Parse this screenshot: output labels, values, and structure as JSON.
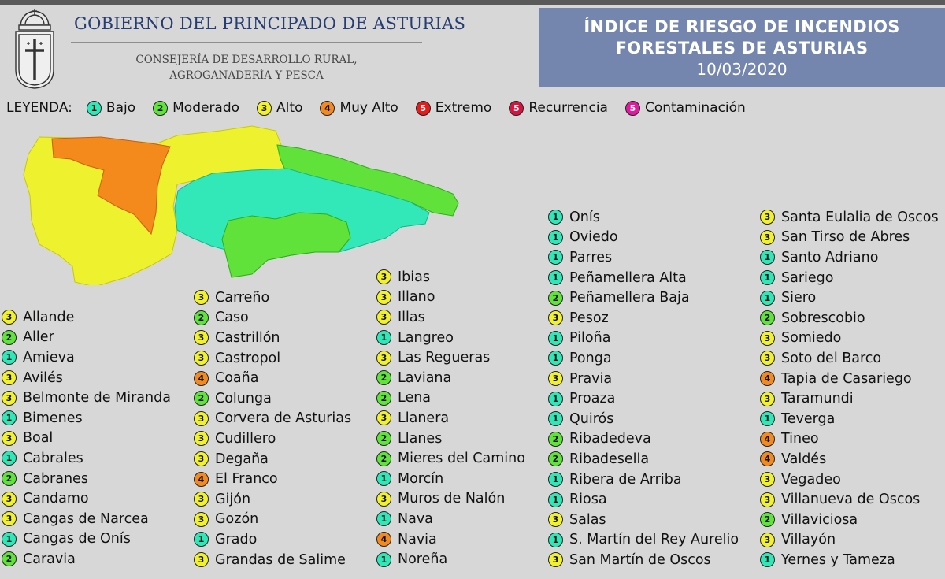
{
  "header": {
    "gov_title": "GOBIERNO DEL PRINCIPADO DE ASTURIAS",
    "consejeria_line1": "CONSEJERÍA DE DESARROLLO RURAL,",
    "consejeria_line2": "AGROGANADERÍA Y PESCA",
    "title_line1": "ÍNDICE DE RIESGO DE INCENDIOS",
    "title_line2": "FORESTALES DE ASTURIAS",
    "date": "10/03/2020"
  },
  "legend": {
    "lead": "LEYENDA:",
    "items": [
      {
        "level": "1",
        "label": "Bajo",
        "color": "#2ee8b8"
      },
      {
        "level": "2",
        "label": "Moderado",
        "color": "#5fe43a"
      },
      {
        "level": "3",
        "label": "Alto",
        "color": "#f2f22a"
      },
      {
        "level": "4",
        "label": "Muy Alto",
        "color": "#f28a1e"
      },
      {
        "level": "5",
        "label": "Extremo",
        "color": "#e61b1b"
      },
      {
        "level": "5",
        "label": "Recurrencia",
        "color": "#d61440"
      },
      {
        "level": "5",
        "label": "Contaminación",
        "color": "#e01aa0"
      }
    ]
  },
  "level_colors": {
    "1": "#2ee8b8",
    "2": "#5fe43a",
    "3": "#f2f22a",
    "4": "#f28a1e"
  },
  "municipalities": {
    "col1": [
      {
        "name": "Allande",
        "level": 3
      },
      {
        "name": "Aller",
        "level": 2
      },
      {
        "name": "Amieva",
        "level": 1
      },
      {
        "name": "Avilés",
        "level": 3
      },
      {
        "name": "Belmonte de Miranda",
        "level": 3
      },
      {
        "name": "Bimenes",
        "level": 1
      },
      {
        "name": "Boal",
        "level": 3
      },
      {
        "name": "Cabrales",
        "level": 1
      },
      {
        "name": "Cabranes",
        "level": 2
      },
      {
        "name": "Candamo",
        "level": 3
      },
      {
        "name": "Cangas de Narcea",
        "level": 3
      },
      {
        "name": "Cangas de Onís",
        "level": 1
      },
      {
        "name": "Caravia",
        "level": 2
      }
    ],
    "col2": [
      {
        "name": "Carreño",
        "level": 3
      },
      {
        "name": "Caso",
        "level": 2
      },
      {
        "name": "Castrillón",
        "level": 3
      },
      {
        "name": "Castropol",
        "level": 3
      },
      {
        "name": "Coaña",
        "level": 4
      },
      {
        "name": "Colunga",
        "level": 2
      },
      {
        "name": "Corvera de Asturias",
        "level": 3
      },
      {
        "name": "Cudillero",
        "level": 3
      },
      {
        "name": "Degaña",
        "level": 3
      },
      {
        "name": "El Franco",
        "level": 4
      },
      {
        "name": "Gijón",
        "level": 3
      },
      {
        "name": "Gozón",
        "level": 3
      },
      {
        "name": "Grado",
        "level": 1
      },
      {
        "name": "Grandas de Salime",
        "level": 3
      }
    ],
    "col3": [
      {
        "name": "Ibias",
        "level": 3
      },
      {
        "name": "Illano",
        "level": 3
      },
      {
        "name": "Illas",
        "level": 3
      },
      {
        "name": "Langreo",
        "level": 1
      },
      {
        "name": "Las Regueras",
        "level": 3
      },
      {
        "name": "Laviana",
        "level": 2
      },
      {
        "name": "Lena",
        "level": 2
      },
      {
        "name": "Llanera",
        "level": 3
      },
      {
        "name": "Llanes",
        "level": 2
      },
      {
        "name": "Mieres del Camino",
        "level": 2
      },
      {
        "name": "Morcín",
        "level": 1
      },
      {
        "name": "Muros de Nalón",
        "level": 3
      },
      {
        "name": "Nava",
        "level": 1
      },
      {
        "name": "Navia",
        "level": 4
      },
      {
        "name": "Noreña",
        "level": 1
      }
    ],
    "col4": [
      {
        "name": "Onís",
        "level": 1
      },
      {
        "name": "Oviedo",
        "level": 1
      },
      {
        "name": "Parres",
        "level": 1
      },
      {
        "name": "Peñamellera Alta",
        "level": 1
      },
      {
        "name": "Peñamellera Baja",
        "level": 2
      },
      {
        "name": "Pesoz",
        "level": 3
      },
      {
        "name": "Piloña",
        "level": 1
      },
      {
        "name": "Ponga",
        "level": 1
      },
      {
        "name": "Pravia",
        "level": 3
      },
      {
        "name": "Proaza",
        "level": 1
      },
      {
        "name": "Quirós",
        "level": 1
      },
      {
        "name": "Ribadedeva",
        "level": 2
      },
      {
        "name": "Ribadesella",
        "level": 2
      },
      {
        "name": "Ribera de Arriba",
        "level": 1
      },
      {
        "name": "Riosa",
        "level": 1
      },
      {
        "name": "Salas",
        "level": 3
      },
      {
        "name": "S. Martín del Rey Aurelio",
        "level": 1
      },
      {
        "name": "San Martín de Oscos",
        "level": 3
      }
    ],
    "col5": [
      {
        "name": "Santa Eulalia de Oscos",
        "level": 3
      },
      {
        "name": "San Tirso de Abres",
        "level": 3
      },
      {
        "name": "Santo Adriano",
        "level": 1
      },
      {
        "name": "Sariego",
        "level": 1
      },
      {
        "name": "Siero",
        "level": 1
      },
      {
        "name": "Sobrescobio",
        "level": 2
      },
      {
        "name": "Somiedo",
        "level": 3
      },
      {
        "name": "Soto del Barco",
        "level": 3
      },
      {
        "name": "Tapia de Casariego",
        "level": 4
      },
      {
        "name": "Taramundi",
        "level": 3
      },
      {
        "name": "Teverga",
        "level": 1
      },
      {
        "name": "Tineo",
        "level": 4
      },
      {
        "name": "Valdés",
        "level": 4
      },
      {
        "name": "Vegadeo",
        "level": 3
      },
      {
        "name": "Villanueva de Oscos",
        "level": 3
      },
      {
        "name": "Villaviciosa",
        "level": 2
      },
      {
        "name": "Villayón",
        "level": 3
      },
      {
        "name": "Yernes y Tameza",
        "level": 1
      }
    ]
  }
}
